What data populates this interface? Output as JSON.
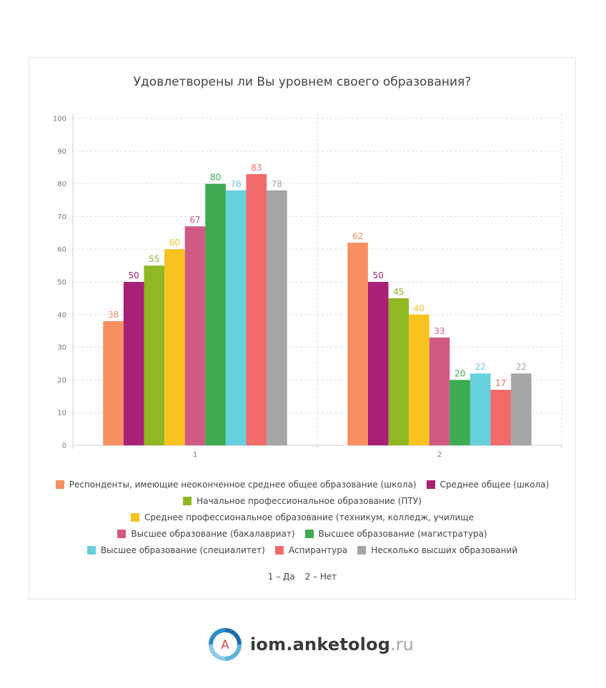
{
  "chart_data": {
    "type": "bar",
    "title": "Удовлетворены ли Вы уровнем своего образования?",
    "categories": [
      "1",
      "2"
    ],
    "ylim": [
      0,
      100
    ],
    "yticks": [
      0,
      10,
      20,
      30,
      40,
      50,
      60,
      70,
      80,
      90,
      100
    ],
    "grid": true,
    "legend_position": "bottom",
    "series": [
      {
        "name": "Респонденты, имеющие неоконченное среднее общее образование (школа)",
        "color": "#f78f61",
        "values": [
          38,
          62
        ]
      },
      {
        "name": "Среднее общее (школа)",
        "color": "#a82078",
        "values": [
          50,
          50
        ]
      },
      {
        "name": "Начальное профессиональное образование (ПТУ)",
        "color": "#90b823",
        "values": [
          55,
          45
        ]
      },
      {
        "name": "Среднее профессиональное образование (техникум, колледж, училище",
        "color": "#f8c320",
        "values": [
          60,
          40
        ]
      },
      {
        "name": "Высшее образование (бакалавриат)",
        "color": "#d05a84",
        "values": [
          67,
          33
        ]
      },
      {
        "name": "Высшее образование (магистратура)",
        "color": "#3cab52",
        "values": [
          80,
          20
        ]
      },
      {
        "name": "Высшее образование (специалитет)",
        "color": "#66d0dc",
        "values": [
          78,
          22
        ]
      },
      {
        "name": "Аспирантура",
        "color": "#f26a6a",
        "values": [
          83,
          17
        ]
      },
      {
        "name": "Несколько высших образований",
        "color": "#a6a6a6",
        "values": [
          78,
          22
        ]
      }
    ],
    "category_note": [
      "1 – Да",
      "2 – Нет"
    ]
  },
  "brand": {
    "logo_letter": "A",
    "name": "iom.anketolog",
    "tld": ".ru"
  }
}
